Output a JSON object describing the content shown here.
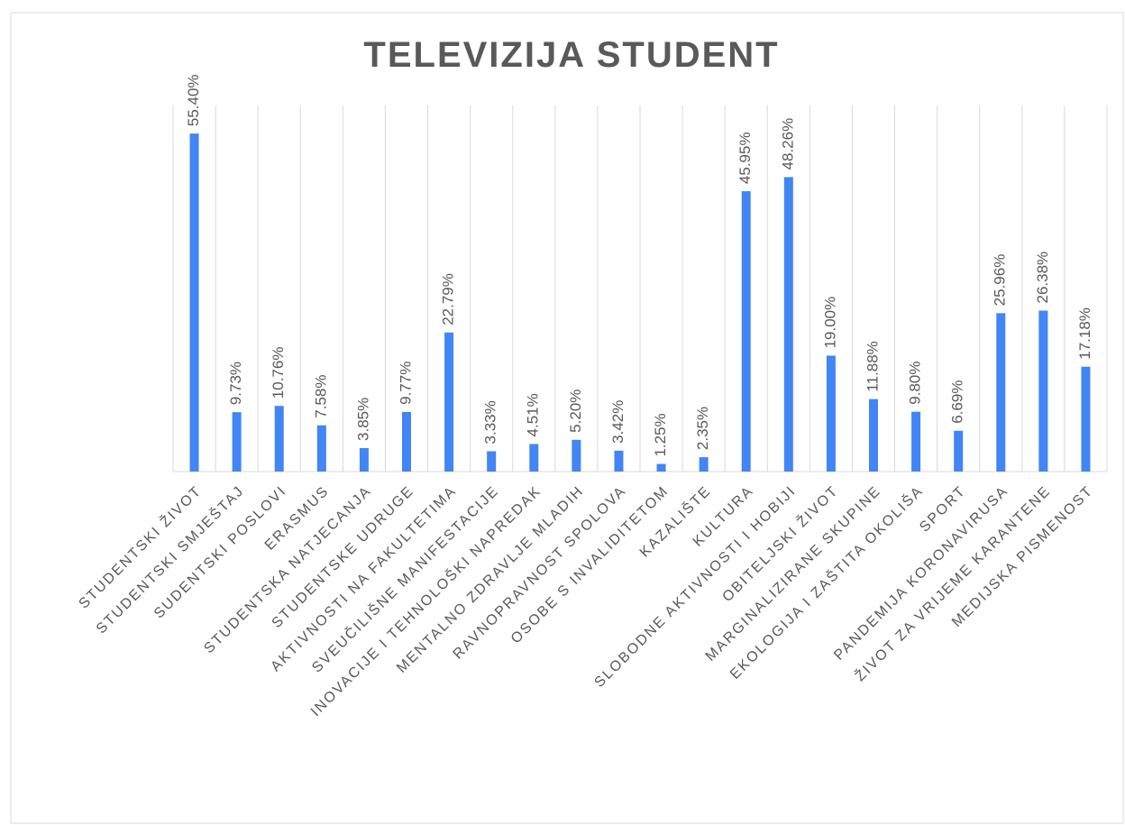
{
  "chart_data": {
    "type": "bar",
    "title": "TELEVIZIJA STUDENT",
    "categories": [
      "STUDENTSKI ŽIVOT",
      "STUDENTSKI SMJEŠTAJ",
      "SUDENTSKI POSLOVI",
      "ERASMUS",
      "STUDENTSKA NATJECANJA",
      "STUDENTSKE UDRUGE",
      "AKTIVNOSTI NA FAKULTETIMA",
      "SVEUČILIŠNE MANIFESTACIJE",
      "INOVACIJE I TEHNOLOŠKI NAPREDAK",
      "MENTALNO ZDRAVLJE MLADIH",
      "RAVNOPRAVNOST SPOLOVA",
      "OSOBE S INVALIDITETOM",
      "KAZALIŠTE",
      "KULTURA",
      "SLOBODNE AKTIVNOSTI I HOBIJI",
      "OBITELJSKI ŽIVOT",
      "MARGINALIZIRANE SKUPINE",
      "EKOLOGIJA I ZAŠTITA OKOLIŠA",
      "SPORT",
      "PANDEMIJA KORONAVIRUSA",
      "ŽIVOT ZA VRIJEME KARANTENE",
      "MEDIJSKA PISMENOST"
    ],
    "values": [
      55.4,
      9.73,
      10.76,
      7.58,
      3.85,
      9.77,
      22.79,
      3.33,
      4.51,
      5.2,
      3.42,
      1.25,
      2.35,
      45.95,
      48.26,
      19.0,
      11.88,
      9.8,
      6.69,
      25.96,
      26.38,
      17.18
    ],
    "value_labels": [
      "55.40%",
      "9.73%",
      "10.76%",
      "7.58%",
      "3.85%",
      "9.77%",
      "22.79%",
      "3.33%",
      "4.51%",
      "5.20%",
      "3.42%",
      "1.25%",
      "2.35%",
      "45.95%",
      "48.26%",
      "19.00%",
      "11.88%",
      "9.80%",
      "6.69%",
      "25.96%",
      "26.38%",
      "17.18%"
    ],
    "color": "#4285f4",
    "ylim": [
      0,
      60
    ],
    "grid": true
  }
}
